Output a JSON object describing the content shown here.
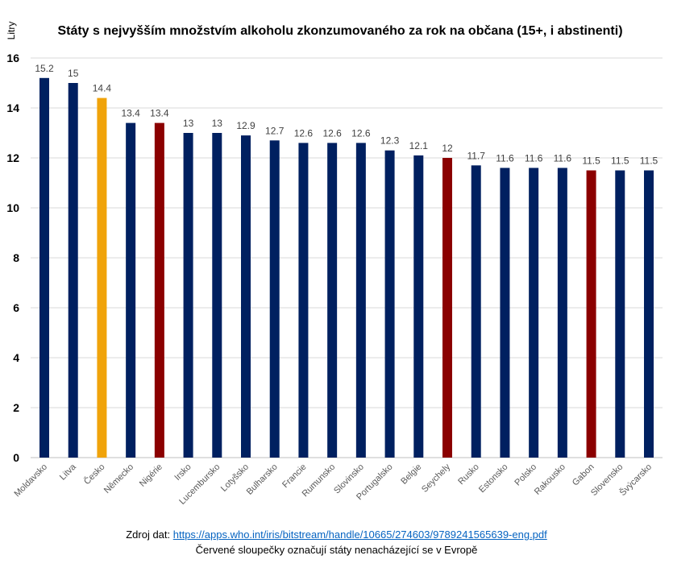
{
  "chart_data": {
    "type": "bar",
    "title": "Státy s nejvyšším množstvím alkoholu zkonzumovaného za rok na občana (15+, i abstinenti)",
    "xlabel": "",
    "ylabel": "Litry",
    "ylim": [
      0,
      16
    ],
    "yticks": [
      0,
      2,
      4,
      6,
      8,
      10,
      12,
      14,
      16
    ],
    "grid": true,
    "categories": [
      "Moldavsko",
      "Litva",
      "Česko",
      "Německo",
      "Nigérie",
      "Irsko",
      "Lucembursko",
      "Lotyšsko",
      "Bulharsko",
      "Francie",
      "Rumunsko",
      "Slovinsko",
      "Portugalsko",
      "Belgie",
      "Seychely",
      "Rusko",
      "Estonsko",
      "Polsko",
      "Rakousko",
      "Gabon",
      "Slovensko",
      "Švýcarsko"
    ],
    "values": [
      15.2,
      15,
      14.4,
      13.4,
      13.4,
      13,
      13,
      12.9,
      12.7,
      12.6,
      12.6,
      12.6,
      12.3,
      12.1,
      12,
      11.7,
      11.6,
      11.6,
      11.6,
      11.5,
      11.5,
      11.5
    ],
    "groups": [
      "europe",
      "europe",
      "czech",
      "europe",
      "non-europe",
      "europe",
      "europe",
      "europe",
      "europe",
      "europe",
      "europe",
      "europe",
      "europe",
      "europe",
      "non-europe",
      "europe",
      "europe",
      "europe",
      "europe",
      "non-europe",
      "europe",
      "europe"
    ],
    "colors": {
      "europe": "#002060",
      "czech": "#F0A30A",
      "non-europe": "#8B0000"
    }
  },
  "footer": {
    "source_prefix": "Zdroj dat: ",
    "source_link": "https://apps.who.int/iris/bitstream/handle/10665/274603/9789241565639-eng.pdf",
    "note": "Červené sloupečky označují státy nenacházející se v Evropě"
  }
}
